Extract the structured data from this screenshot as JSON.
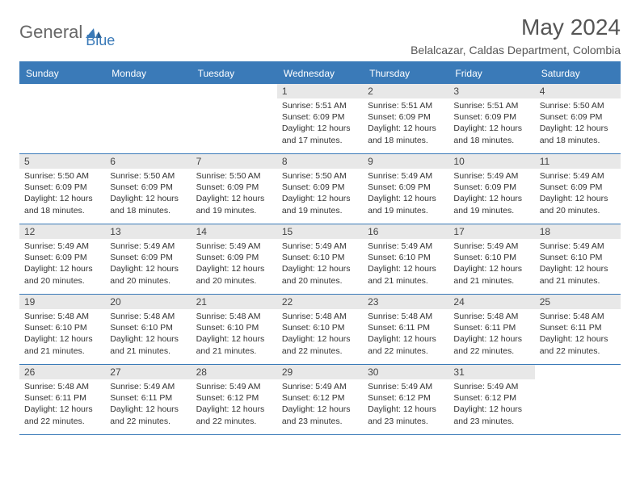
{
  "brand": {
    "name1": "General",
    "name2": "Blue",
    "mark_color": "#3a7ab8"
  },
  "title": "May 2024",
  "subtitle": "Belalcazar, Caldas Department, Colombia",
  "colors": {
    "header_bg": "#3a7ab8",
    "header_text": "#ffffff",
    "daynum_bg": "#e8e8e8",
    "border": "#3a7ab8",
    "text": "#333333"
  },
  "weekdays": [
    "Sunday",
    "Monday",
    "Tuesday",
    "Wednesday",
    "Thursday",
    "Friday",
    "Saturday"
  ],
  "weeks": [
    [
      {
        "n": "",
        "sr": "",
        "ss": "",
        "dl": ""
      },
      {
        "n": "",
        "sr": "",
        "ss": "",
        "dl": ""
      },
      {
        "n": "",
        "sr": "",
        "ss": "",
        "dl": ""
      },
      {
        "n": "1",
        "sr": "5:51 AM",
        "ss": "6:09 PM",
        "dl": "12 hours and 17 minutes."
      },
      {
        "n": "2",
        "sr": "5:51 AM",
        "ss": "6:09 PM",
        "dl": "12 hours and 18 minutes."
      },
      {
        "n": "3",
        "sr": "5:51 AM",
        "ss": "6:09 PM",
        "dl": "12 hours and 18 minutes."
      },
      {
        "n": "4",
        "sr": "5:50 AM",
        "ss": "6:09 PM",
        "dl": "12 hours and 18 minutes."
      }
    ],
    [
      {
        "n": "5",
        "sr": "5:50 AM",
        "ss": "6:09 PM",
        "dl": "12 hours and 18 minutes."
      },
      {
        "n": "6",
        "sr": "5:50 AM",
        "ss": "6:09 PM",
        "dl": "12 hours and 18 minutes."
      },
      {
        "n": "7",
        "sr": "5:50 AM",
        "ss": "6:09 PM",
        "dl": "12 hours and 19 minutes."
      },
      {
        "n": "8",
        "sr": "5:50 AM",
        "ss": "6:09 PM",
        "dl": "12 hours and 19 minutes."
      },
      {
        "n": "9",
        "sr": "5:49 AM",
        "ss": "6:09 PM",
        "dl": "12 hours and 19 minutes."
      },
      {
        "n": "10",
        "sr": "5:49 AM",
        "ss": "6:09 PM",
        "dl": "12 hours and 19 minutes."
      },
      {
        "n": "11",
        "sr": "5:49 AM",
        "ss": "6:09 PM",
        "dl": "12 hours and 20 minutes."
      }
    ],
    [
      {
        "n": "12",
        "sr": "5:49 AM",
        "ss": "6:09 PM",
        "dl": "12 hours and 20 minutes."
      },
      {
        "n": "13",
        "sr": "5:49 AM",
        "ss": "6:09 PM",
        "dl": "12 hours and 20 minutes."
      },
      {
        "n": "14",
        "sr": "5:49 AM",
        "ss": "6:09 PM",
        "dl": "12 hours and 20 minutes."
      },
      {
        "n": "15",
        "sr": "5:49 AM",
        "ss": "6:10 PM",
        "dl": "12 hours and 20 minutes."
      },
      {
        "n": "16",
        "sr": "5:49 AM",
        "ss": "6:10 PM",
        "dl": "12 hours and 21 minutes."
      },
      {
        "n": "17",
        "sr": "5:49 AM",
        "ss": "6:10 PM",
        "dl": "12 hours and 21 minutes."
      },
      {
        "n": "18",
        "sr": "5:49 AM",
        "ss": "6:10 PM",
        "dl": "12 hours and 21 minutes."
      }
    ],
    [
      {
        "n": "19",
        "sr": "5:48 AM",
        "ss": "6:10 PM",
        "dl": "12 hours and 21 minutes."
      },
      {
        "n": "20",
        "sr": "5:48 AM",
        "ss": "6:10 PM",
        "dl": "12 hours and 21 minutes."
      },
      {
        "n": "21",
        "sr": "5:48 AM",
        "ss": "6:10 PM",
        "dl": "12 hours and 21 minutes."
      },
      {
        "n": "22",
        "sr": "5:48 AM",
        "ss": "6:10 PM",
        "dl": "12 hours and 22 minutes."
      },
      {
        "n": "23",
        "sr": "5:48 AM",
        "ss": "6:11 PM",
        "dl": "12 hours and 22 minutes."
      },
      {
        "n": "24",
        "sr": "5:48 AM",
        "ss": "6:11 PM",
        "dl": "12 hours and 22 minutes."
      },
      {
        "n": "25",
        "sr": "5:48 AM",
        "ss": "6:11 PM",
        "dl": "12 hours and 22 minutes."
      }
    ],
    [
      {
        "n": "26",
        "sr": "5:48 AM",
        "ss": "6:11 PM",
        "dl": "12 hours and 22 minutes."
      },
      {
        "n": "27",
        "sr": "5:49 AM",
        "ss": "6:11 PM",
        "dl": "12 hours and 22 minutes."
      },
      {
        "n": "28",
        "sr": "5:49 AM",
        "ss": "6:12 PM",
        "dl": "12 hours and 22 minutes."
      },
      {
        "n": "29",
        "sr": "5:49 AM",
        "ss": "6:12 PM",
        "dl": "12 hours and 23 minutes."
      },
      {
        "n": "30",
        "sr": "5:49 AM",
        "ss": "6:12 PM",
        "dl": "12 hours and 23 minutes."
      },
      {
        "n": "31",
        "sr": "5:49 AM",
        "ss": "6:12 PM",
        "dl": "12 hours and 23 minutes."
      },
      {
        "n": "",
        "sr": "",
        "ss": "",
        "dl": ""
      }
    ]
  ],
  "labels": {
    "sunrise": "Sunrise:",
    "sunset": "Sunset:",
    "daylight": "Daylight:"
  }
}
